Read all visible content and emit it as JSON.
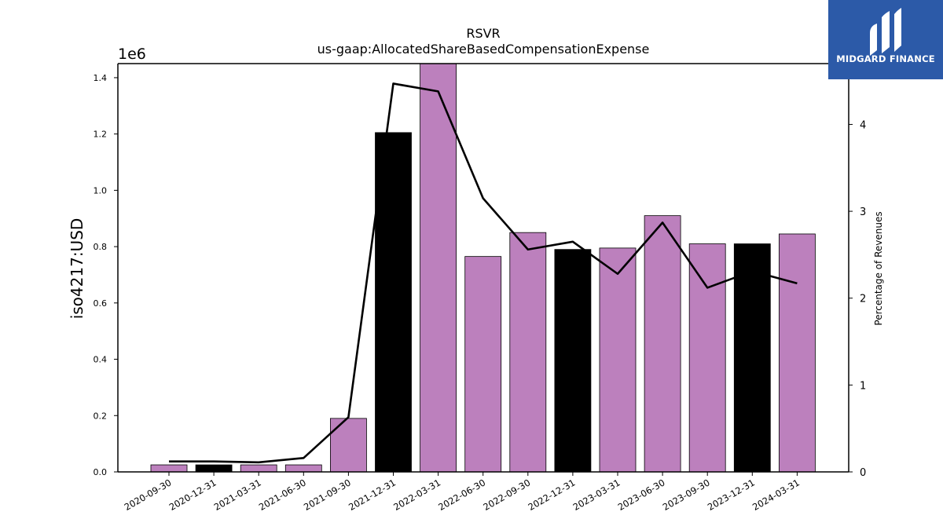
{
  "chart_data": {
    "type": "bar",
    "title": "RSVR",
    "subtitle": "us-gaap:AllocatedShareBasedCompensationExpense",
    "ylabel": "iso4217:USD",
    "y2label": "Percentage of Revenues",
    "y_offset_label": "1e6",
    "ylim": [
      0,
      1.45
    ],
    "y2lim": [
      0,
      4.7
    ],
    "yticks": [
      "0.0",
      "0.2",
      "0.4",
      "0.6",
      "0.8",
      "1.0",
      "1.2",
      "1.4"
    ],
    "y2ticks": [
      "0",
      "1",
      "2",
      "3",
      "4"
    ],
    "categories": [
      "2020-09-30",
      "2020-12-31",
      "2021-03-31",
      "2021-06-30",
      "2021-09-30",
      "2021-12-31",
      "2022-03-31",
      "2022-06-30",
      "2022-09-30",
      "2022-12-31",
      "2023-03-31",
      "2023-06-30",
      "2023-09-30",
      "2023-12-31",
      "2024-03-31"
    ],
    "series": [
      {
        "kind": "bar",
        "values": [
          0.025,
          0.025,
          0.025,
          0.025,
          0.19,
          1.205,
          1.45,
          0.765,
          0.85,
          0.79,
          0.795,
          0.91,
          0.81,
          0.81,
          0.845
        ],
        "colors": [
          "#bc80bd",
          "#000000",
          "#bc80bd",
          "#bc80bd",
          "#bc80bd",
          "#000000",
          "#bc80bd",
          "#bc80bd",
          "#bc80bd",
          "#000000",
          "#bc80bd",
          "#bc80bd",
          "#bc80bd",
          "#000000",
          "#bc80bd"
        ]
      },
      {
        "kind": "line",
        "axis": "right",
        "values": [
          0.12,
          0.12,
          0.11,
          0.16,
          0.63,
          4.47,
          4.38,
          3.15,
          2.56,
          2.65,
          2.28,
          2.87,
          2.12,
          2.31,
          2.17
        ]
      }
    ],
    "colors": {
      "bar": "#bc80bd",
      "bar_highlight": "#000000",
      "line": "#000000"
    }
  },
  "logo": {
    "text": "MIDGARD FINANCE",
    "background": "#2c5aa8"
  }
}
